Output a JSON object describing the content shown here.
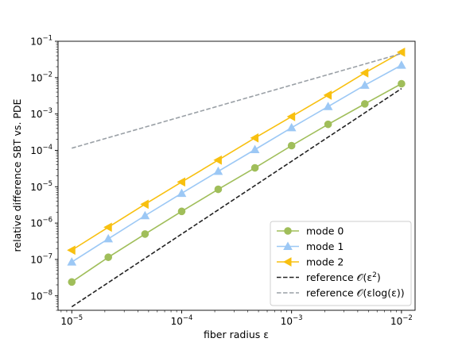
{
  "chart_data": {
    "type": "line",
    "title": "",
    "xlabel": "fiber radius ε",
    "ylabel": "relative difference SBT vs. PDE",
    "xscale": "log",
    "yscale": "log",
    "xlim": [
      7.5e-06,
      0.0133
    ],
    "ylim": [
      4e-09,
      0.1
    ],
    "x_ticks": [
      {
        "value": 1e-05,
        "base": "10",
        "exp": "−5"
      },
      {
        "value": 0.0001,
        "base": "10",
        "exp": "−4"
      },
      {
        "value": 0.001,
        "base": "10",
        "exp": "−3"
      },
      {
        "value": 0.01,
        "base": "10",
        "exp": "−2"
      }
    ],
    "y_ticks": [
      {
        "value": 1e-08,
        "base": "10",
        "exp": "−8"
      },
      {
        "value": 1e-07,
        "base": "10",
        "exp": "−7"
      },
      {
        "value": 1e-06,
        "base": "10",
        "exp": "−6"
      },
      {
        "value": 1e-05,
        "base": "10",
        "exp": "−5"
      },
      {
        "value": 0.0001,
        "base": "10",
        "exp": "−4"
      },
      {
        "value": 0.001,
        "base": "10",
        "exp": "−3"
      },
      {
        "value": 0.01,
        "base": "10",
        "exp": "−2"
      },
      {
        "value": 0.1,
        "base": "10",
        "exp": "−1"
      }
    ],
    "x": [
      1e-05,
      2.15e-05,
      4.64e-05,
      0.0001,
      0.000215,
      0.000464,
      0.001,
      0.00215,
      0.00464,
      0.01
    ],
    "series": [
      {
        "name": "mode 0",
        "color": "#a0be5a",
        "marker": "circle",
        "linestyle": "solid",
        "values": [
          2.4e-08,
          1.15e-07,
          5e-07,
          2.1e-06,
          8.5e-06,
          3.3e-05,
          0.000135,
          0.00052,
          0.0019,
          0.0068
        ]
      },
      {
        "name": "mode 1",
        "color": "#9cc8f5",
        "marker": "triangle-up",
        "linestyle": "solid",
        "values": [
          8.5e-08,
          3.7e-07,
          1.6e-06,
          6.6e-06,
          2.65e-05,
          0.000105,
          0.00042,
          0.0016,
          0.0062,
          0.022
        ]
      },
      {
        "name": "mode 2",
        "color": "#f8c010",
        "marker": "triangle-left",
        "linestyle": "solid",
        "values": [
          1.8e-07,
          7.7e-07,
          3.3e-06,
          1.35e-05,
          5.4e-05,
          0.00022,
          0.00085,
          0.0033,
          0.0135,
          0.05
        ]
      },
      {
        "name": "reference 𝒪(ε²)",
        "name_prefix": "reference ",
        "name_math": "𝒪(ε",
        "name_sup": "2",
        "name_suffix": ")",
        "color": "#222222",
        "marker": "none",
        "linestyle": "dashed",
        "x": [
          1e-05,
          0.01
        ],
        "values": [
          5e-09,
          0.005
        ]
      },
      {
        "name": "reference 𝒪(εlog(ε))",
        "name_prefix": "reference ",
        "name_math": "𝒪(εlog(ε))",
        "name_sup": "",
        "name_suffix": "",
        "color": "#9aa0a6",
        "marker": "none",
        "linestyle": "dashed",
        "x": [
          1e-05,
          0.01
        ],
        "values": [
          0.000115,
          0.046
        ]
      }
    ],
    "legend_position": "lower-right",
    "grid": false
  }
}
